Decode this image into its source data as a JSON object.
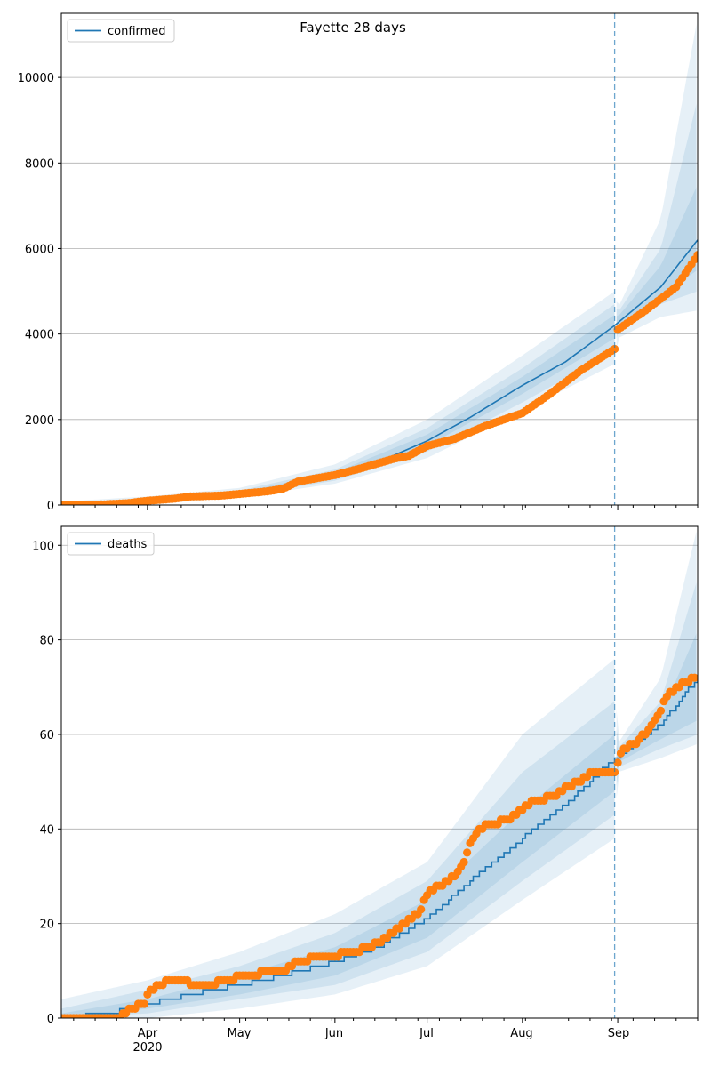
{
  "figure": {
    "title": "Fayette 28 days"
  },
  "colors": {
    "model": "#1f77b4",
    "observed": "#ff7f0e",
    "band": "#1f77b4",
    "grid": "#b0b0b0"
  },
  "x_axis": {
    "month_labels": [
      "Apr",
      "May",
      "Jun",
      "Jul",
      "Aug",
      "Sep"
    ],
    "year_label": "2020"
  },
  "chart_data": [
    {
      "type": "line",
      "legend": "confirmed",
      "legend_position": "top-left",
      "grid": "horizontal",
      "x_range": [
        "2020-03-04",
        "2020-09-27"
      ],
      "forecast_start": "2020-08-31",
      "ylim": [
        0,
        11500
      ],
      "yticks": [
        0,
        2000,
        4000,
        6000,
        8000,
        10000
      ],
      "model_median": [
        [
          "2020-03-04",
          0
        ],
        [
          "2020-03-20",
          20
        ],
        [
          "2020-04-01",
          90
        ],
        [
          "2020-04-15",
          190
        ],
        [
          "2020-05-01",
          270
        ],
        [
          "2020-05-15",
          420
        ],
        [
          "2020-06-01",
          700
        ],
        [
          "2020-06-15",
          1000
        ],
        [
          "2020-07-01",
          1500
        ],
        [
          "2020-07-15",
          2050
        ],
        [
          "2020-08-01",
          2800
        ],
        [
          "2020-08-15",
          3350
        ],
        [
          "2020-08-31",
          4200
        ],
        [
          "2020-09-15",
          5100
        ],
        [
          "2020-09-27",
          6200
        ]
      ],
      "bands": [
        {
          "level": "outer",
          "lower": [
            [
              "2020-03-04",
              0
            ],
            [
              "2020-04-01",
              10
            ],
            [
              "2020-05-01",
              180
            ],
            [
              "2020-06-01",
              500
            ],
            [
              "2020-07-01",
              1100
            ],
            [
              "2020-08-01",
              2200
            ],
            [
              "2020-08-31",
              3300
            ],
            [
              "2020-09-01",
              3900
            ],
            [
              "2020-09-15",
              4400
            ],
            [
              "2020-09-27",
              4550
            ]
          ],
          "upper": [
            [
              "2020-03-04",
              80
            ],
            [
              "2020-04-01",
              200
            ],
            [
              "2020-05-01",
              400
            ],
            [
              "2020-06-01",
              950
            ],
            [
              "2020-07-01",
              2000
            ],
            [
              "2020-08-01",
              3500
            ],
            [
              "2020-08-31",
              5000
            ],
            [
              "2020-09-01",
              4600
            ],
            [
              "2020-09-15",
              6700
            ],
            [
              "2020-09-27",
              11400
            ]
          ]
        },
        {
          "level": "middle",
          "lower": [
            [
              "2020-03-04",
              0
            ],
            [
              "2020-04-01",
              40
            ],
            [
              "2020-05-01",
              210
            ],
            [
              "2020-06-01",
              570
            ],
            [
              "2020-07-01",
              1250
            ],
            [
              "2020-08-01",
              2400
            ],
            [
              "2020-08-31",
              3600
            ],
            [
              "2020-09-01",
              4100
            ],
            [
              "2020-09-15",
              4700
            ],
            [
              "2020-09-27",
              5000
            ]
          ],
          "upper": [
            [
              "2020-03-04",
              50
            ],
            [
              "2020-04-01",
              150
            ],
            [
              "2020-05-01",
              340
            ],
            [
              "2020-06-01",
              830
            ],
            [
              "2020-07-01",
              1800
            ],
            [
              "2020-08-01",
              3200
            ],
            [
              "2020-08-31",
              4700
            ],
            [
              "2020-09-01",
              4500
            ],
            [
              "2020-09-15",
              6000
            ],
            [
              "2020-09-27",
              9500
            ]
          ]
        },
        {
          "level": "inner",
          "lower": [
            [
              "2020-03-04",
              0
            ],
            [
              "2020-04-01",
              60
            ],
            [
              "2020-05-01",
              240
            ],
            [
              "2020-06-01",
              630
            ],
            [
              "2020-07-01",
              1380
            ],
            [
              "2020-08-01",
              2600
            ],
            [
              "2020-08-31",
              3900
            ],
            [
              "2020-09-01",
              4200
            ],
            [
              "2020-09-15",
              4900
            ],
            [
              "2020-09-27",
              5500
            ]
          ],
          "upper": [
            [
              "2020-03-04",
              30
            ],
            [
              "2020-04-01",
              120
            ],
            [
              "2020-05-01",
              300
            ],
            [
              "2020-06-01",
              760
            ],
            [
              "2020-07-01",
              1650
            ],
            [
              "2020-08-01",
              3000
            ],
            [
              "2020-08-31",
              4450
            ],
            [
              "2020-09-01",
              4400
            ],
            [
              "2020-09-15",
              5600
            ],
            [
              "2020-09-27",
              7500
            ]
          ]
        }
      ],
      "observed": [
        [
          "2020-03-04",
          0
        ],
        [
          "2020-03-15",
          5
        ],
        [
          "2020-03-25",
          40
        ],
        [
          "2020-04-01",
          100
        ],
        [
          "2020-04-10",
          150
        ],
        [
          "2020-04-15",
          200
        ],
        [
          "2020-04-25",
          220
        ],
        [
          "2020-05-01",
          260
        ],
        [
          "2020-05-10",
          320
        ],
        [
          "2020-05-15",
          380
        ],
        [
          "2020-05-20",
          550
        ],
        [
          "2020-06-01",
          700
        ],
        [
          "2020-06-10",
          870
        ],
        [
          "2020-06-20",
          1080
        ],
        [
          "2020-06-25",
          1150
        ],
        [
          "2020-07-01",
          1380
        ],
        [
          "2020-07-10",
          1550
        ],
        [
          "2020-07-20",
          1850
        ],
        [
          "2020-08-01",
          2150
        ],
        [
          "2020-08-10",
          2600
        ],
        [
          "2020-08-20",
          3150
        ],
        [
          "2020-08-31",
          3650
        ],
        [
          "2020-09-01",
          4100
        ],
        [
          "2020-09-10",
          4550
        ],
        [
          "2020-09-20",
          5100
        ],
        [
          "2020-09-27",
          5850
        ]
      ]
    },
    {
      "type": "line",
      "legend": "deaths",
      "legend_position": "top-left",
      "grid": "horizontal",
      "x_range": [
        "2020-03-04",
        "2020-09-27"
      ],
      "forecast_start": "2020-08-31",
      "ylim": [
        0,
        104
      ],
      "yticks": [
        0,
        20,
        40,
        60,
        80,
        100
      ],
      "model_median": [
        [
          "2020-03-04",
          0
        ],
        [
          "2020-03-20",
          1
        ],
        [
          "2020-04-01",
          3
        ],
        [
          "2020-04-15",
          5
        ],
        [
          "2020-05-01",
          7
        ],
        [
          "2020-05-15",
          9
        ],
        [
          "2020-06-01",
          12
        ],
        [
          "2020-06-15",
          15
        ],
        [
          "2020-07-01",
          21
        ],
        [
          "2020-07-15",
          29
        ],
        [
          "2020-08-01",
          38
        ],
        [
          "2020-08-15",
          45
        ],
        [
          "2020-08-31",
          55
        ],
        [
          "2020-09-15",
          62
        ],
        [
          "2020-09-27",
          72
        ]
      ],
      "bands": [
        {
          "level": "outer",
          "lower": [
            [
              "2020-03-04",
              0
            ],
            [
              "2020-04-01",
              0
            ],
            [
              "2020-05-01",
              2
            ],
            [
              "2020-06-01",
              5
            ],
            [
              "2020-07-01",
              11
            ],
            [
              "2020-08-01",
              25
            ],
            [
              "2020-08-31",
              38
            ],
            [
              "2020-09-01",
              52
            ],
            [
              "2020-09-15",
              55
            ],
            [
              "2020-09-27",
              58
            ]
          ],
          "upper": [
            [
              "2020-03-04",
              4
            ],
            [
              "2020-04-01",
              8
            ],
            [
              "2020-05-01",
              14
            ],
            [
              "2020-06-01",
              22
            ],
            [
              "2020-07-01",
              33
            ],
            [
              "2020-08-01",
              60
            ],
            [
              "2020-08-31",
              76
            ],
            [
              "2020-09-01",
              58
            ],
            [
              "2020-09-15",
              72
            ],
            [
              "2020-09-27",
              104
            ]
          ]
        },
        {
          "level": "middle",
          "lower": [
            [
              "2020-03-04",
              0
            ],
            [
              "2020-04-01",
              1
            ],
            [
              "2020-05-01",
              4
            ],
            [
              "2020-06-01",
              7
            ],
            [
              "2020-07-01",
              14
            ],
            [
              "2020-08-01",
              29
            ],
            [
              "2020-08-31",
              43
            ],
            [
              "2020-09-01",
              53
            ],
            [
              "2020-09-15",
              57
            ],
            [
              "2020-09-27",
              60
            ]
          ],
          "upper": [
            [
              "2020-03-04",
              2
            ],
            [
              "2020-04-01",
              6
            ],
            [
              "2020-05-01",
              11
            ],
            [
              "2020-06-01",
              18
            ],
            [
              "2020-07-01",
              29
            ],
            [
              "2020-08-01",
              52
            ],
            [
              "2020-08-31",
              67
            ],
            [
              "2020-09-01",
              57
            ],
            [
              "2020-09-15",
              67
            ],
            [
              "2020-09-27",
              93
            ]
          ]
        },
        {
          "level": "inner",
          "lower": [
            [
              "2020-03-04",
              0
            ],
            [
              "2020-04-01",
              2
            ],
            [
              "2020-05-01",
              5
            ],
            [
              "2020-06-01",
              9
            ],
            [
              "2020-07-01",
              17
            ],
            [
              "2020-08-01",
              33
            ],
            [
              "2020-08-31",
              48
            ],
            [
              "2020-09-01",
              54
            ],
            [
              "2020-09-15",
              59
            ],
            [
              "2020-09-27",
              63
            ]
          ],
          "upper": [
            [
              "2020-03-04",
              1
            ],
            [
              "2020-04-01",
              4
            ],
            [
              "2020-05-01",
              9
            ],
            [
              "2020-06-01",
              15
            ],
            [
              "2020-07-01",
              25
            ],
            [
              "2020-08-01",
              44
            ],
            [
              "2020-08-31",
              60
            ],
            [
              "2020-09-01",
              56
            ],
            [
              "2020-09-15",
              64
            ],
            [
              "2020-09-27",
              82
            ]
          ]
        }
      ],
      "observed": [
        [
          "2020-03-04",
          0
        ],
        [
          "2020-03-23",
          0
        ],
        [
          "2020-03-25",
          1
        ],
        [
          "2020-03-27",
          2
        ],
        [
          "2020-03-31",
          3
        ],
        [
          "2020-04-02",
          6
        ],
        [
          "2020-04-05",
          7
        ],
        [
          "2020-04-08",
          8
        ],
        [
          "2020-04-20",
          7
        ],
        [
          "2020-04-28",
          8
        ],
        [
          "2020-05-01",
          9
        ],
        [
          "2020-05-15",
          10
        ],
        [
          "2020-05-20",
          12
        ],
        [
          "2020-05-28",
          13
        ],
        [
          "2020-06-08",
          14
        ],
        [
          "2020-06-15",
          16
        ],
        [
          "2020-06-20",
          18
        ],
        [
          "2020-06-28",
          22
        ],
        [
          "2020-07-01",
          26
        ],
        [
          "2020-07-05",
          28
        ],
        [
          "2020-07-10",
          30
        ],
        [
          "2020-07-13",
          33
        ],
        [
          "2020-07-15",
          37
        ],
        [
          "2020-07-18",
          40
        ],
        [
          "2020-07-22",
          41
        ],
        [
          "2020-07-28",
          42
        ],
        [
          "2020-08-01",
          44
        ],
        [
          "2020-08-05",
          46
        ],
        [
          "2020-08-12",
          47
        ],
        [
          "2020-08-16",
          49
        ],
        [
          "2020-08-20",
          50
        ],
        [
          "2020-08-23",
          52
        ],
        [
          "2020-08-31",
          52
        ],
        [
          "2020-09-01",
          54
        ],
        [
          "2020-09-03",
          57
        ],
        [
          "2020-09-07",
          58
        ],
        [
          "2020-09-11",
          61
        ],
        [
          "2020-09-14",
          64
        ],
        [
          "2020-09-17",
          68
        ],
        [
          "2020-09-20",
          70
        ],
        [
          "2020-09-23",
          71
        ],
        [
          "2020-09-26",
          72
        ]
      ]
    }
  ]
}
